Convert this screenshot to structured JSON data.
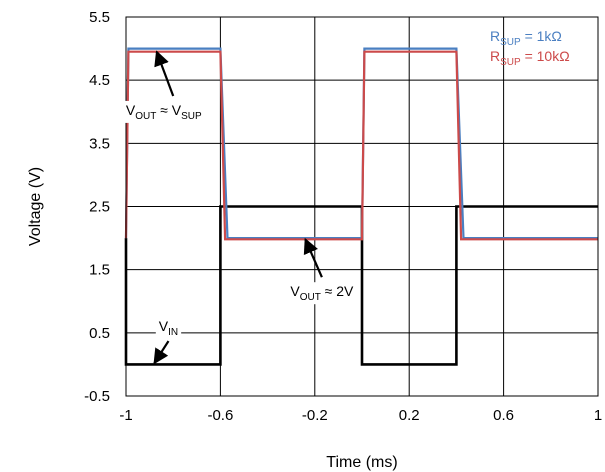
{
  "chart_data": {
    "type": "line",
    "title": "",
    "xlabel": "Time (ms)",
    "ylabel": "Voltage (V)",
    "xlim": [
      -1,
      1
    ],
    "ylim": [
      -0.5,
      5.5
    ],
    "grid": true,
    "legend_position": "top-right",
    "x_ticks": [
      -1,
      -0.6,
      -0.2,
      0.2,
      0.6,
      1
    ],
    "x_tick_labels": [
      "-1",
      "-0.6",
      "-0.2",
      "0.2",
      "0.6",
      "1"
    ],
    "y_ticks": [
      -0.5,
      0.5,
      1.5,
      2.5,
      3.5,
      4.5,
      5.5
    ],
    "y_tick_labels": [
      "-0.5",
      "0.5",
      "1.5",
      "2.5",
      "3.5",
      "4.5",
      "5.5"
    ],
    "series": [
      {
        "name": "",
        "color": "#000000",
        "x": [
          -1,
          -1,
          -0.6,
          -0.6,
          0.0,
          0.0,
          0.4,
          0.4,
          1.0
        ],
        "y": [
          2.0,
          0.0,
          0.0,
          2.5,
          2.5,
          0.0,
          0.0,
          2.5,
          2.5
        ]
      },
      {
        "name": "RSUP = 1kΩ",
        "color": "#4a7fc1",
        "x": [
          -1,
          -0.99,
          -0.6,
          -0.57,
          0.0,
          0.01,
          0.4,
          0.43,
          1.0
        ],
        "y": [
          2.0,
          5.0,
          5.0,
          2.0,
          2.0,
          5.0,
          5.0,
          2.0,
          2.0
        ]
      },
      {
        "name": "RSUP = 10kΩ",
        "color": "#cc4a4a",
        "x": [
          -1,
          -0.99,
          -0.6,
          -0.58,
          0.0,
          0.01,
          0.4,
          0.42,
          1.0
        ],
        "y": [
          2.0,
          4.95,
          4.95,
          1.98,
          1.98,
          4.95,
          4.95,
          1.98,
          1.98
        ]
      }
    ],
    "legend": [
      {
        "main": "R",
        "sub": "SUP",
        "rest": " = 1kΩ",
        "color": "#4a7fc1"
      },
      {
        "main": "R",
        "sub": "SUP",
        "rest": " = 10kΩ",
        "color": "#cc4a4a"
      }
    ],
    "annotations": [
      {
        "parts": [
          {
            "t": "V",
            "sub": false
          },
          {
            "t": "OUT",
            "sub": true
          },
          {
            "t": " ≈ V",
            "sub": false
          },
          {
            "t": "SUP",
            "sub": true
          }
        ],
        "text_at": [
          -0.84,
          3.95
        ],
        "arrow_from": [
          -0.8,
          4.25
        ],
        "arrow_to": [
          -0.87,
          4.95
        ]
      },
      {
        "parts": [
          {
            "t": "V",
            "sub": false
          },
          {
            "t": "OUT",
            "sub": true
          },
          {
            "t": " ≈ 2V",
            "sub": false
          }
        ],
        "text_at": [
          -0.17,
          1.08
        ],
        "arrow_from": [
          -0.17,
          1.38
        ],
        "arrow_to": [
          -0.24,
          1.98
        ]
      },
      {
        "parts": [
          {
            "t": "V",
            "sub": false
          },
          {
            "t": "IN",
            "sub": true
          }
        ],
        "text_at": [
          -0.82,
          0.53
        ],
        "arrow_from": [
          -0.82,
          0.37
        ],
        "arrow_to": [
          -0.88,
          0.02
        ]
      }
    ]
  }
}
